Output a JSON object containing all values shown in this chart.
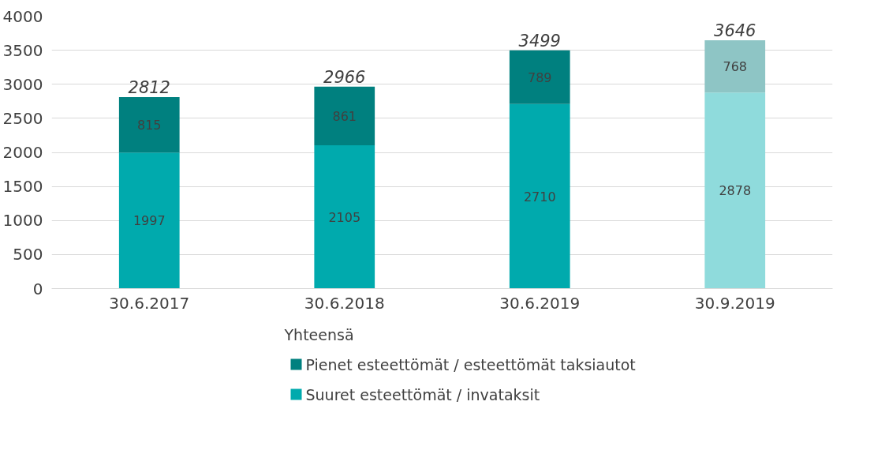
{
  "chart_data": {
    "type": "bar",
    "stacked": true,
    "categories": [
      "30.6.2017",
      "30.6.2018",
      "30.6.2019",
      "30.9.2019"
    ],
    "series": [
      {
        "name": "Suuret esteettömät / invataksit",
        "color": "#00aaad",
        "colors": [
          "#00aaad",
          "#00aaad",
          "#00aaad",
          "#8fdbdc"
        ],
        "values": [
          1997,
          2105,
          2710,
          2878
        ]
      },
      {
        "name": "Pienet esteettömät / esteettömät taksiautot",
        "color": "#00807f",
        "colors": [
          "#00807f",
          "#00807f",
          "#00807f",
          "#8ec5c5"
        ],
        "values": [
          815,
          861,
          789,
          768
        ]
      }
    ],
    "totals": [
      "2812",
      "2966",
      "3499",
      "3646"
    ],
    "data_labels": true,
    "legend_title": "Yhteensä",
    "legend": "bottom",
    "grid": "y",
    "ylim": [
      0,
      4000
    ],
    "yticks": [
      0,
      500,
      1000,
      1500,
      2000,
      2500,
      3000,
      3500,
      4000
    ]
  }
}
